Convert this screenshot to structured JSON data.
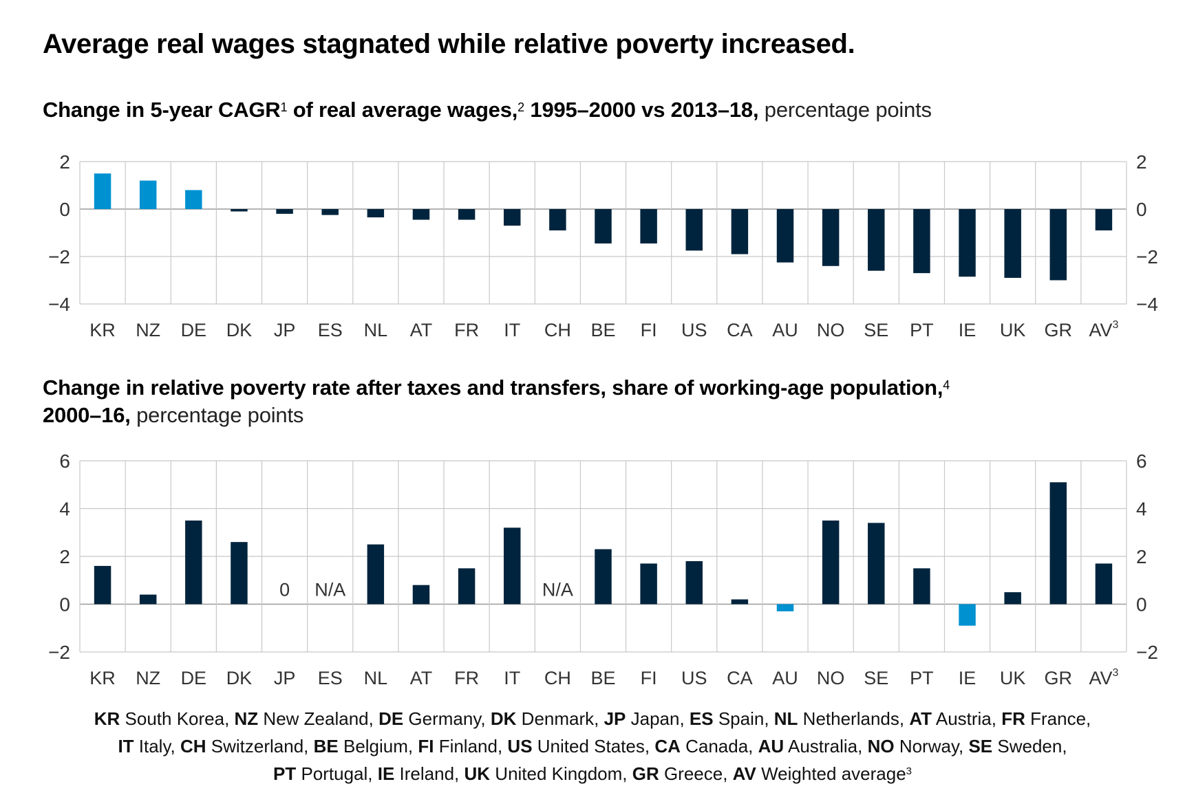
{
  "title": "Average real wages stagnated while relative poverty increased.",
  "charts_text": {
    "chart1": {
      "bold": "Change in 5-year CAGR",
      "sup1": "1",
      "bold2": " of real average wages,",
      "sup2": "2",
      "bold3": " 1995–2000 vs 2013–18,",
      "light": " percentage points"
    },
    "chart2": {
      "bold": "Change in relative poverty rate after taxes and transfers, share of working-age population,",
      "sup1": "4",
      "bold2": "2000–16,",
      "light": " percentage points"
    }
  },
  "colors": {
    "dark": "#00243d",
    "highlight": "#0091d1",
    "grid": "#c8c8c8",
    "zero": "#9a9a9a",
    "text": "#333333"
  },
  "chart_data": [
    {
      "type": "bar",
      "title": "Change in 5-year CAGR of real average wages, 1995–2000 vs 2013–18, percentage points",
      "xlabel": "",
      "ylabel": "percentage points",
      "categories": [
        "KR",
        "NZ",
        "DE",
        "DK",
        "JP",
        "ES",
        "NL",
        "AT",
        "FR",
        "IT",
        "CH",
        "BE",
        "FI",
        "US",
        "CA",
        "AU",
        "NO",
        "SE",
        "PT",
        "IE",
        "UK",
        "GR",
        "AV"
      ],
      "category_superscripts": {
        "AV": "3"
      },
      "values": [
        1.5,
        1.2,
        0.8,
        -0.1,
        -0.2,
        -0.25,
        -0.35,
        -0.45,
        -0.45,
        -0.7,
        -0.9,
        -1.45,
        -1.45,
        -1.75,
        -1.9,
        -2.25,
        -2.4,
        -2.6,
        -2.7,
        -2.85,
        -2.9,
        -3.0,
        -0.9
      ],
      "highlighted": [
        "KR",
        "NZ",
        "DE"
      ],
      "ylim": [
        -4,
        2
      ],
      "yticks": [
        2,
        0,
        -2,
        -4
      ],
      "ytick_labels": [
        "2",
        "0",
        "−2",
        "−4"
      ],
      "grid": true,
      "dual_y_axis": true
    },
    {
      "type": "bar",
      "title": "Change in relative poverty rate after taxes and transfers, share of working-age population, 2000–16, percentage points",
      "xlabel": "",
      "ylabel": "percentage points",
      "categories": [
        "KR",
        "NZ",
        "DE",
        "DK",
        "JP",
        "ES",
        "NL",
        "AT",
        "FR",
        "IT",
        "CH",
        "BE",
        "FI",
        "US",
        "CA",
        "AU",
        "NO",
        "SE",
        "PT",
        "IE",
        "UK",
        "GR",
        "AV"
      ],
      "category_superscripts": {
        "AV": "3"
      },
      "values": [
        1.6,
        0.4,
        3.5,
        2.6,
        0,
        null,
        2.5,
        0.8,
        1.5,
        3.2,
        null,
        2.3,
        1.7,
        1.8,
        0.2,
        -0.3,
        3.5,
        3.4,
        1.5,
        -0.9,
        0.5,
        5.1,
        1.7
      ],
      "value_annotations": {
        "JP": "0",
        "ES": "N/A",
        "CH": "N/A"
      },
      "highlighted": [
        "AU",
        "IE"
      ],
      "ylim": [
        -2,
        6
      ],
      "yticks": [
        6,
        4,
        2,
        0,
        -2
      ],
      "ytick_labels": [
        "6",
        "4",
        "2",
        "0",
        "−2"
      ],
      "grid": true,
      "dual_y_axis": true
    }
  ],
  "footer": {
    "lines": [
      [
        [
          "KR",
          " South Korea, "
        ],
        [
          "NZ",
          " New Zealand, "
        ],
        [
          "DE",
          " Germany, "
        ],
        [
          "DK",
          " Denmark, "
        ],
        [
          "JP",
          " Japan, "
        ],
        [
          "ES",
          " Spain, "
        ],
        [
          "NL",
          " Netherlands, "
        ],
        [
          "AT",
          " Austria, "
        ],
        [
          "FR",
          " France,"
        ]
      ],
      [
        [
          "IT",
          " Italy, "
        ],
        [
          "CH",
          " Switzerland, "
        ],
        [
          "BE",
          " Belgium, "
        ],
        [
          "FI",
          " Finland, "
        ],
        [
          "US",
          " United States, "
        ],
        [
          "CA",
          " Canada, "
        ],
        [
          "AU",
          " Australia, "
        ],
        [
          "NO",
          " Norway, "
        ],
        [
          "SE",
          " Sweden,"
        ]
      ],
      [
        [
          "PT",
          " Portugal, "
        ],
        [
          "IE",
          " Ireland, "
        ],
        [
          "UK",
          " United Kingdom, "
        ],
        [
          "GR",
          " Greece, "
        ],
        [
          "AV",
          " Weighted average"
        ]
      ]
    ],
    "final_sup": "3"
  }
}
